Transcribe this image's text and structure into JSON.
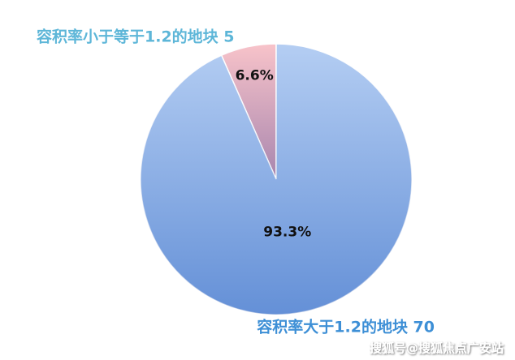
{
  "chart_data": {
    "type": "pie",
    "categories": [
      "容积率小于等于1.2的地块 5",
      "容积率大于1.2的地块 70"
    ],
    "values": [
      6.6,
      93.3
    ],
    "value_labels": [
      "6.6%",
      "93.3%"
    ],
    "colors": [
      "#f4a3ad",
      "#8cb3ec"
    ],
    "label_colors": [
      "#5db6d8",
      "#3d8fd6"
    ],
    "watermark": "搜狐号@搜狐焦点广安站"
  }
}
